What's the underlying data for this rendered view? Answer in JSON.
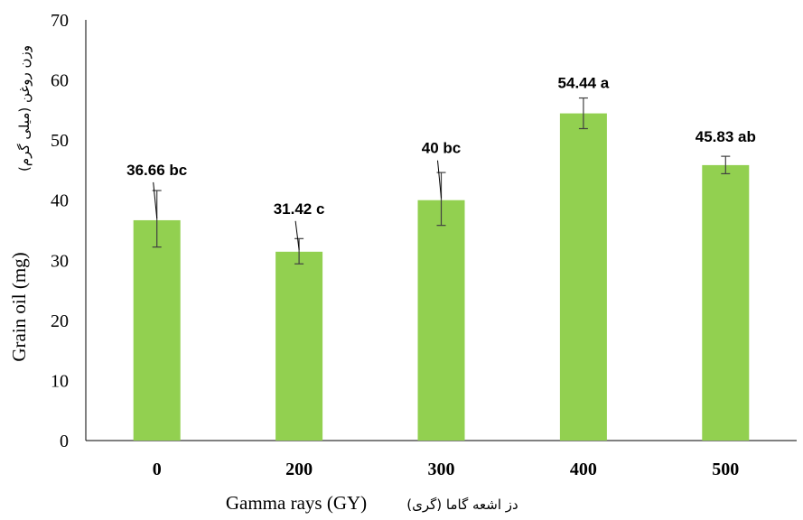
{
  "chart_data": {
    "type": "bar",
    "categories": [
      "0",
      "200",
      "300",
      "400",
      "500"
    ],
    "values": [
      36.66,
      31.42,
      40,
      54.44,
      45.83
    ],
    "error_low": [
      32.2,
      29.4,
      35.8,
      51.9,
      44.4
    ],
    "error_high": [
      41.6,
      33.6,
      44.6,
      57.0,
      47.3
    ],
    "data_labels": [
      "36.66 bc",
      "31.42 c",
      "40 bc",
      "54.44 a",
      "45.83 ab"
    ],
    "ylabel": "Grain oil (mg)",
    "ylabel_fa": "وزن روغن (میلی گرم)",
    "xlabel": "Gamma rays (GY)",
    "xlabel_fa": "دز اشعه گاما (گری)",
    "ylim": [
      0,
      70
    ],
    "yticks": [
      "0",
      "10",
      "20",
      "30",
      "40",
      "50",
      "60",
      "70"
    ],
    "grid": false,
    "bar_color": "#92d050",
    "error_bar_color": "#404040"
  }
}
